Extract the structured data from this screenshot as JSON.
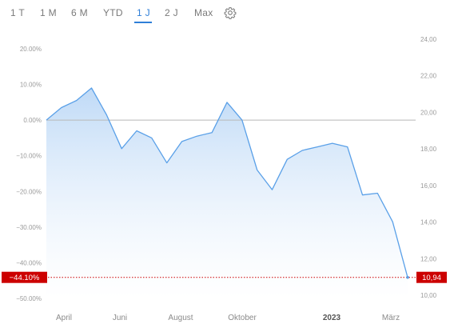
{
  "range_tabs": [
    {
      "label": "1 T",
      "active": false
    },
    {
      "label": "1 M",
      "active": false
    },
    {
      "label": "6 M",
      "active": false
    },
    {
      "label": "YTD",
      "active": false
    },
    {
      "label": "1 J",
      "active": true
    },
    {
      "label": "2 J",
      "active": false
    },
    {
      "label": "Max",
      "active": false
    }
  ],
  "settings_icon": "gear-icon",
  "colors": {
    "line": "#5aa0e8",
    "fill_top": "#bcd8f6",
    "fill_bottom": "#ffffff",
    "accent": "#2f7fd8",
    "badge": "#cc0000",
    "baseline": "#b8b8b8"
  },
  "chart_data": {
    "type": "area",
    "title": "",
    "xlabel": "",
    "ylabel": "",
    "x_ticks": [
      "April",
      "Juni",
      "August",
      "Oktober",
      "2023",
      "März"
    ],
    "x_tick_bold": "2023",
    "y_left": {
      "ticks": [
        "20.00%",
        "10.00%",
        "0.00%",
        "−10.00%",
        "−20.00%",
        "−30.00%",
        "−40.00%",
        "−50.00%"
      ],
      "tick_values": [
        20,
        10,
        0,
        -10,
        -20,
        -30,
        -40,
        -50
      ],
      "unit": "%"
    },
    "y_right": {
      "ticks": [
        "24,00",
        "22,00",
        "20,00",
        "18,00",
        "16,00",
        "14,00",
        "12,00",
        "10,00"
      ],
      "tick_values": [
        24,
        22,
        20,
        18,
        16,
        14,
        12,
        10
      ]
    },
    "ylim_percent": [
      -50,
      20
    ],
    "baseline_percent": 0,
    "last_percent_label": "−44.10%",
    "last_price_label": "10,94",
    "x_positions": [
      0,
      0.5,
      1,
      1.5,
      2,
      2.5,
      3,
      3.5,
      4,
      4.5,
      5,
      5.5,
      6,
      6.5,
      7,
      7.5,
      8,
      8.5,
      9,
      9.5,
      10,
      10.5,
      11,
      11.5,
      12
    ],
    "series": [
      {
        "values": [
          0.0,
          3.5,
          5.5,
          9.0,
          1.5,
          -8.0,
          -3.0,
          -5.0,
          -12.0,
          -6.0,
          -4.5,
          -3.5,
          5.0,
          0.0,
          -14.0,
          -19.5,
          -11.0,
          -8.5,
          -7.5,
          -6.5,
          -7.5,
          -21.0,
          -20.5,
          -28.5,
          -44.1
        ]
      }
    ]
  }
}
